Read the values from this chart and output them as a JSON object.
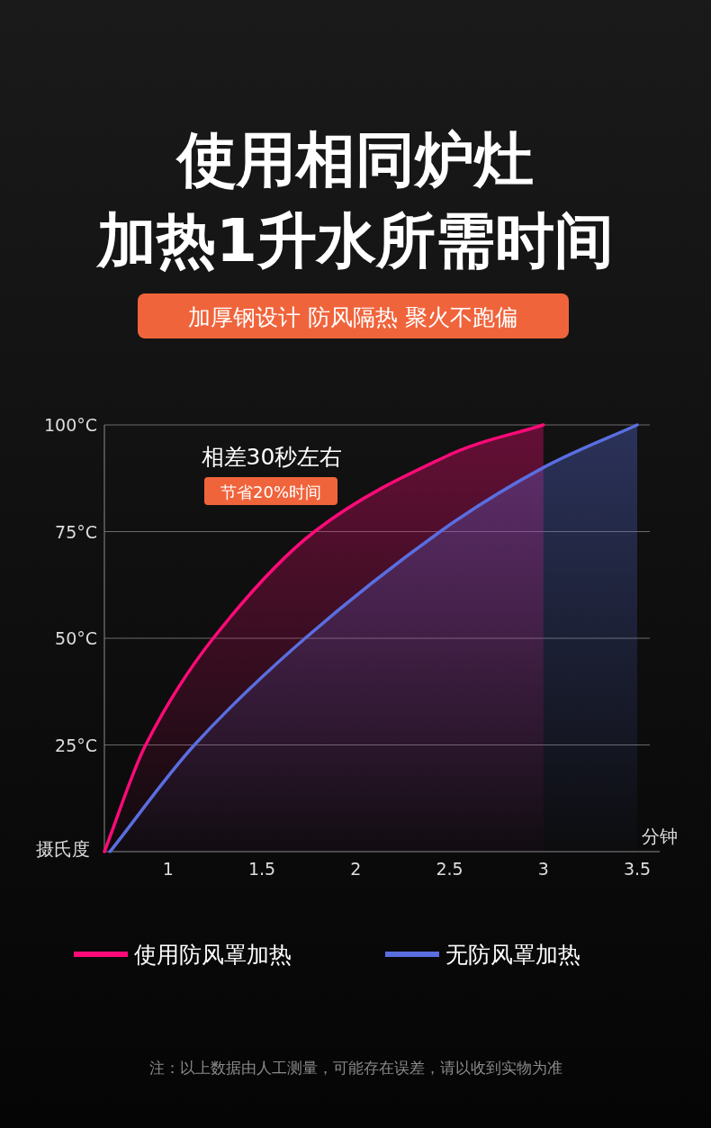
{
  "chart_data": {
    "type": "area",
    "title": "使用相同炉灶",
    "subtitle": "加热1升水所需时间",
    "xlabel": "分钟",
    "ylabel": "摄氏度",
    "xlim": [
      0.66,
      3.62
    ],
    "ylim": [
      0,
      100
    ],
    "xticks": [
      1,
      1.5,
      2,
      2.5,
      3,
      3.5
    ],
    "yticks": [
      {
        "value": 25,
        "label": "25°C"
      },
      {
        "value": 50,
        "label": "50°C"
      },
      {
        "value": 75,
        "label": "75°C"
      },
      {
        "value": 100,
        "label": "100°C"
      }
    ],
    "grid": "y",
    "legend": "bottom",
    "series": [
      {
        "name": "使用防风罩加热",
        "color": "#ff0a78",
        "x": [
          0.66,
          0.88,
          1.24,
          1.78,
          2.5,
          3.0
        ],
        "values": [
          0,
          25,
          50,
          75,
          93,
          100
        ]
      },
      {
        "name": "无防风罩加热",
        "color": "#5a6ee0",
        "x": [
          0.69,
          1.14,
          1.73,
          2.45,
          3.0,
          3.5
        ],
        "values": [
          0,
          25,
          50,
          75,
          90,
          100
        ]
      }
    ],
    "annotations": [
      "加厚钢设计 防风隔热 聚火不跑偏",
      "相差30秒左右",
      "节省20%时间",
      "注：以上数据由人工测量，可能存在误差，请以收到实物为准"
    ]
  }
}
